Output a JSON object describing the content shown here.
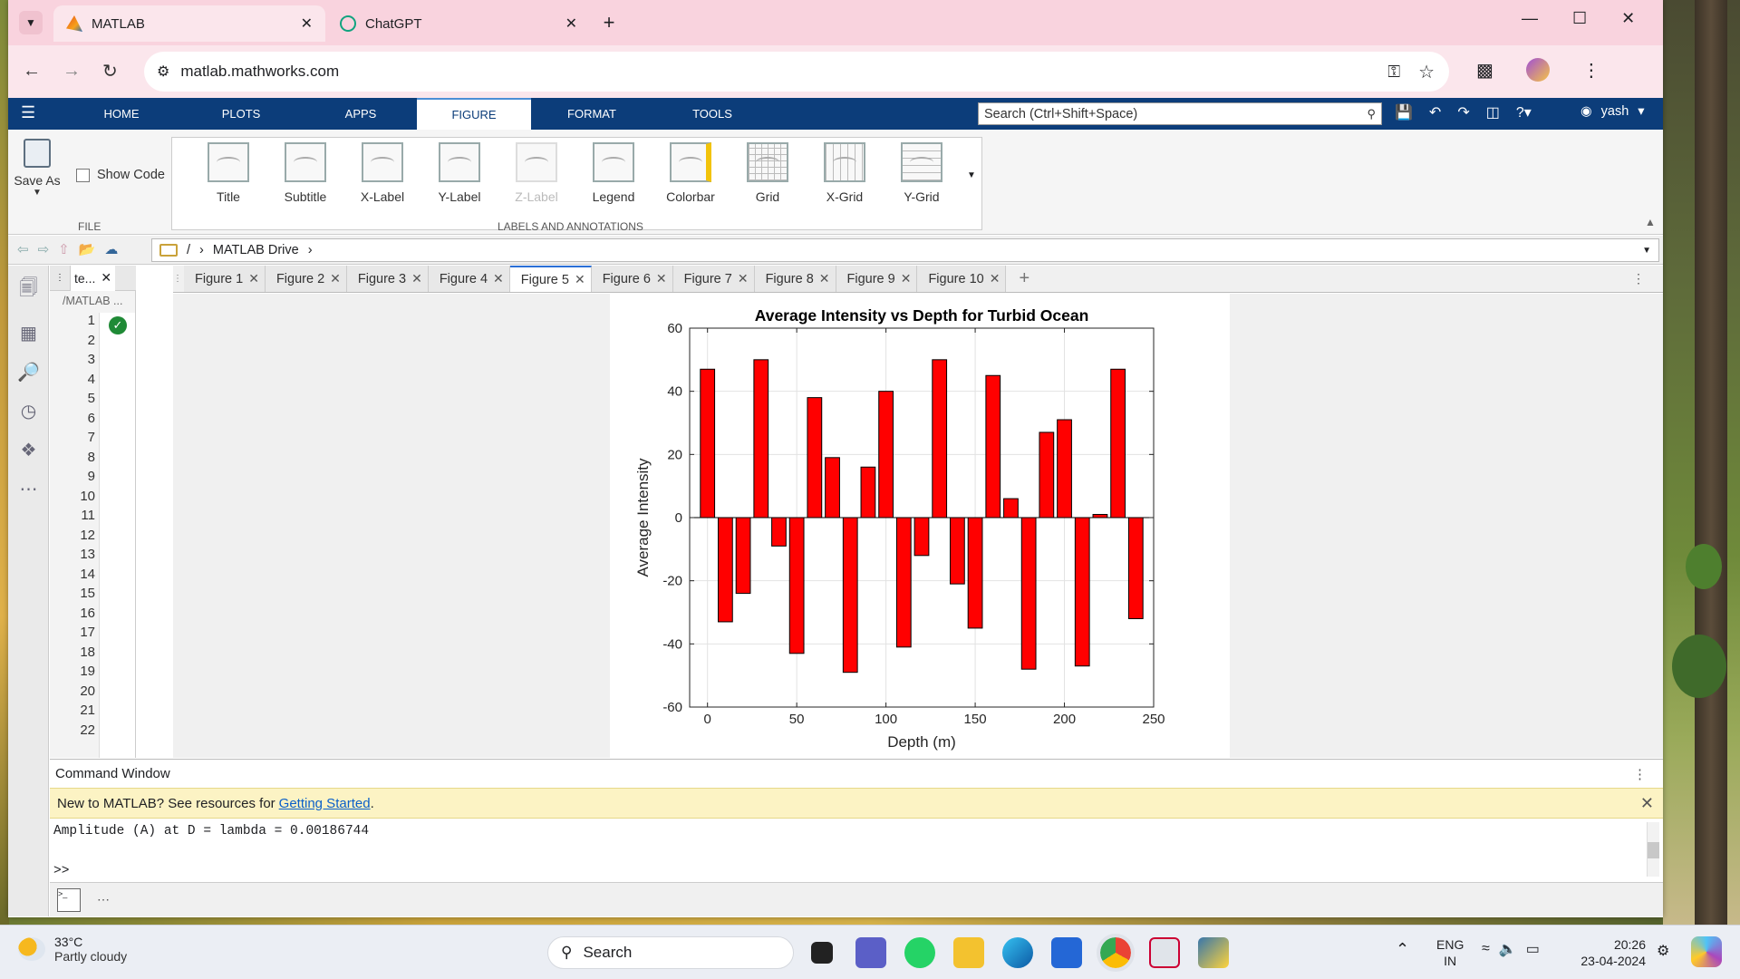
{
  "browser": {
    "tabs": [
      {
        "title": "MATLAB",
        "active": true
      },
      {
        "title": "ChatGPT",
        "active": false
      }
    ],
    "url": "matlab.mathworks.com",
    "new_tab_icon": "plus-icon"
  },
  "matlab": {
    "tabs": [
      "HOME",
      "PLOTS",
      "APPS",
      "FIGURE",
      "FORMAT",
      "TOOLS"
    ],
    "active_tab": "FIGURE",
    "search_placeholder": "Search (Ctrl+Shift+Space)",
    "user": "yash",
    "ribbon": {
      "save_as": "Save As",
      "show_code": "Show Code",
      "file_section": "FILE",
      "labels_section": "LABELS AND ANNOTATIONS",
      "buttons": [
        "Title",
        "Subtitle",
        "X-Label",
        "Y-Label",
        "Z-Label",
        "Legend",
        "Colorbar",
        "Grid",
        "X-Grid",
        "Y-Grid"
      ]
    },
    "path": {
      "root": "/",
      "folder": "MATLAB Drive"
    },
    "editor": {
      "tab": "te...",
      "path": "/MATLAB ...",
      "line_numbers": [
        "1",
        "2",
        "3",
        "4",
        "5",
        "6",
        "7",
        "8",
        "9",
        "10",
        "11",
        "12",
        "13",
        "14",
        "15",
        "16",
        "17",
        "18",
        "19",
        "20",
        "21",
        "22"
      ]
    },
    "figure_tabs": [
      "Figure 1",
      "Figure 2",
      "Figure 3",
      "Figure 4",
      "Figure 5",
      "Figure 6",
      "Figure 7",
      "Figure 8",
      "Figure 9",
      "Figure 10"
    ],
    "active_figure": "Figure 5",
    "command_window": {
      "title": "Command Window",
      "notice": "New to MATLAB? See resources for ",
      "notice_link": "Getting Started",
      "notice_end": ".",
      "output_line": "Amplitude (A) at D = lambda = 0.00186744",
      "prompt": ">>"
    }
  },
  "chart_data": {
    "type": "bar",
    "title": "Average Intensity vs Depth for Turbid Ocean",
    "xlabel": "Depth (m)",
    "ylabel": "Average Intensity",
    "xlim": [
      -10,
      250
    ],
    "ylim": [
      -60,
      60
    ],
    "xticks": [
      "0",
      "50",
      "100",
      "150",
      "200",
      "250"
    ],
    "yticks": [
      "60",
      "40",
      "20",
      "0",
      "-20",
      "-40",
      "-60"
    ],
    "bar_color": "#ff0000",
    "grid": true,
    "x": [
      0,
      10,
      20,
      30,
      40,
      50,
      60,
      70,
      80,
      90,
      100,
      110,
      120,
      130,
      140,
      150,
      160,
      170,
      180,
      190,
      200,
      210,
      220,
      230,
      240
    ],
    "values": [
      47,
      -33,
      -24,
      50,
      -9,
      -43,
      38,
      19,
      -49,
      16,
      40,
      -41,
      -12,
      50,
      -21,
      -35,
      45,
      6,
      -48,
      27,
      31,
      -47,
      1,
      47,
      -32
    ]
  },
  "taskbar": {
    "weather_temp": "33°C",
    "weather_desc": "Partly cloudy",
    "search": "Search",
    "lang1": "ENG",
    "lang2": "IN",
    "time": "20:26",
    "date": "23-04-2024"
  }
}
